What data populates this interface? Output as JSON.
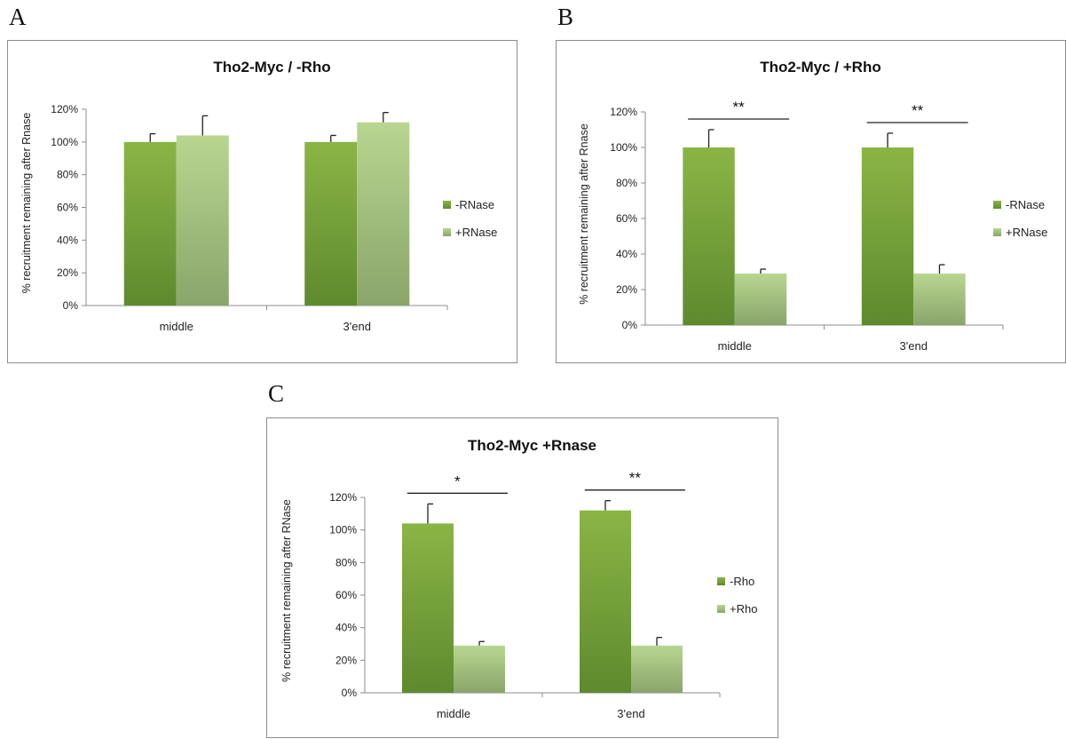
{
  "panels": [
    {
      "letter": "A"
    },
    {
      "letter": "B"
    },
    {
      "letter": "C"
    }
  ],
  "colors": {
    "series1_top": "#8ab545",
    "series1_bottom": "#5e8a2e",
    "series2_top": "#b8d690",
    "series2_bottom": "#8aa56a"
  },
  "chart_data": [
    {
      "type": "bar",
      "title": "Tho2-Myc / -Rho",
      "ylabel": "% recruitment remaining after Rnase",
      "xlabel": "",
      "categories": [
        "middle",
        "3'end"
      ],
      "ylim": [
        0,
        120
      ],
      "yticks": [
        "0%",
        "20%",
        "40%",
        "60%",
        "80%",
        "100%",
        "120%"
      ],
      "series": [
        {
          "name": "-RNase",
          "values": [
            100,
            100
          ],
          "errors": [
            5,
            4
          ]
        },
        {
          "name": "+RNase",
          "values": [
            104,
            112
          ],
          "errors": [
            12,
            6
          ]
        }
      ],
      "significance": [],
      "legend": "right",
      "grid": false
    },
    {
      "type": "bar",
      "title": "Tho2-Myc / +Rho",
      "ylabel": "% recruitment remaining after Rnase",
      "xlabel": "",
      "categories": [
        "middle",
        "3'end"
      ],
      "ylim": [
        0,
        120
      ],
      "yticks": [
        "0%",
        "20%",
        "40%",
        "60%",
        "80%",
        "100%",
        "120%"
      ],
      "series": [
        {
          "name": "-RNase",
          "values": [
            100,
            100
          ],
          "errors": [
            10,
            8
          ]
        },
        {
          "name": "+RNase",
          "values": [
            29,
            29
          ],
          "errors": [
            2.5,
            5
          ]
        }
      ],
      "significance": [
        "**",
        "**"
      ],
      "legend": "right",
      "grid": false
    },
    {
      "type": "bar",
      "title": "Tho2-Myc +Rnase",
      "ylabel": "% recruitment remaining after RNase",
      "xlabel": "",
      "categories": [
        "middle",
        "3'end"
      ],
      "ylim": [
        0,
        120
      ],
      "yticks": [
        "0%",
        "20%",
        "40%",
        "60%",
        "80%",
        "100%",
        "120%"
      ],
      "series": [
        {
          "name": "-Rho",
          "values": [
            104,
            112
          ],
          "errors": [
            12,
            6
          ]
        },
        {
          "name": "+Rho",
          "values": [
            29,
            29
          ],
          "errors": [
            2.5,
            5
          ]
        }
      ],
      "significance": [
        "*",
        "**"
      ],
      "legend": "right",
      "grid": false
    }
  ]
}
